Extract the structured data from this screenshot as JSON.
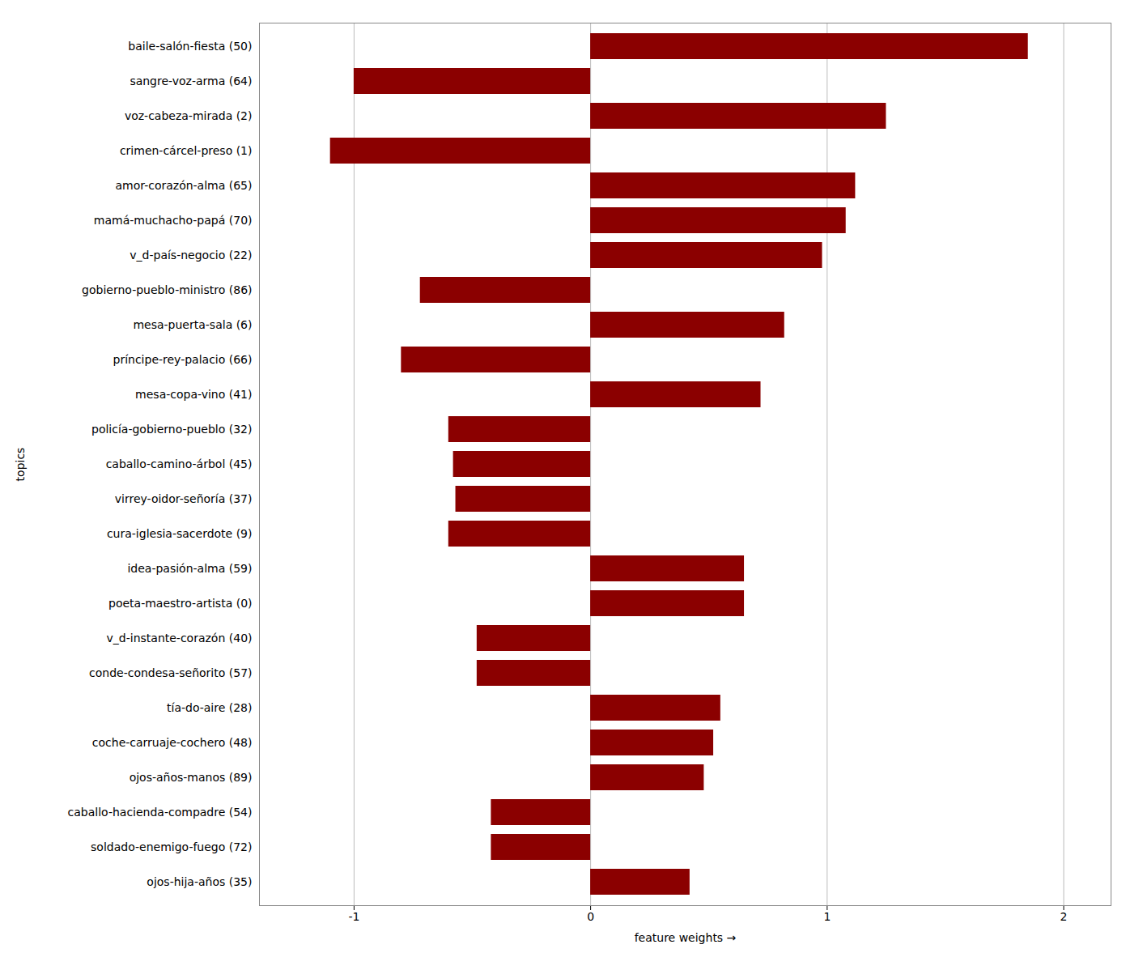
{
  "chart_data": {
    "type": "bar",
    "orientation": "horizontal",
    "categories": [
      "baile-salón-fiesta (50)",
      "sangre-voz-arma (64)",
      "voz-cabeza-mirada (2)",
      "crimen-cárcel-preso (1)",
      "amor-corazón-alma (65)",
      "mamá-muchacho-papá (70)",
      "v_d-país-negocio (22)",
      "gobierno-pueblo-ministro (86)",
      "mesa-puerta-sala (6)",
      "príncipe-rey-palacio (66)",
      "mesa-copa-vino (41)",
      "policía-gobierno-pueblo (32)",
      "caballo-camino-árbol (45)",
      "virrey-oidor-señoría (37)",
      "cura-iglesia-sacerdote (9)",
      "idea-pasión-alma (59)",
      "poeta-maestro-artista (0)",
      "v_d-instante-corazón (40)",
      "conde-condesa-señorito (57)",
      "tía-do-aire (28)",
      "coche-carruaje-cochero (48)",
      "ojos-años-manos (89)",
      "caballo-hacienda-compadre (54)",
      "soldado-enemigo-fuego (72)",
      "ojos-hija-años (35)"
    ],
    "values": [
      1.85,
      -1.0,
      1.25,
      -1.1,
      1.12,
      1.08,
      0.98,
      -0.72,
      0.82,
      -0.8,
      0.72,
      -0.6,
      -0.58,
      -0.57,
      -0.6,
      0.65,
      0.65,
      -0.48,
      -0.48,
      0.55,
      0.52,
      0.48,
      -0.42,
      -0.42,
      0.42
    ],
    "color": "#8B0000",
    "xlabel": "feature weights",
    "ylabel": "topics",
    "xlim": [
      -1.4,
      2.2
    ],
    "xticks": [
      -1,
      0,
      1,
      2
    ],
    "grid": true
  }
}
